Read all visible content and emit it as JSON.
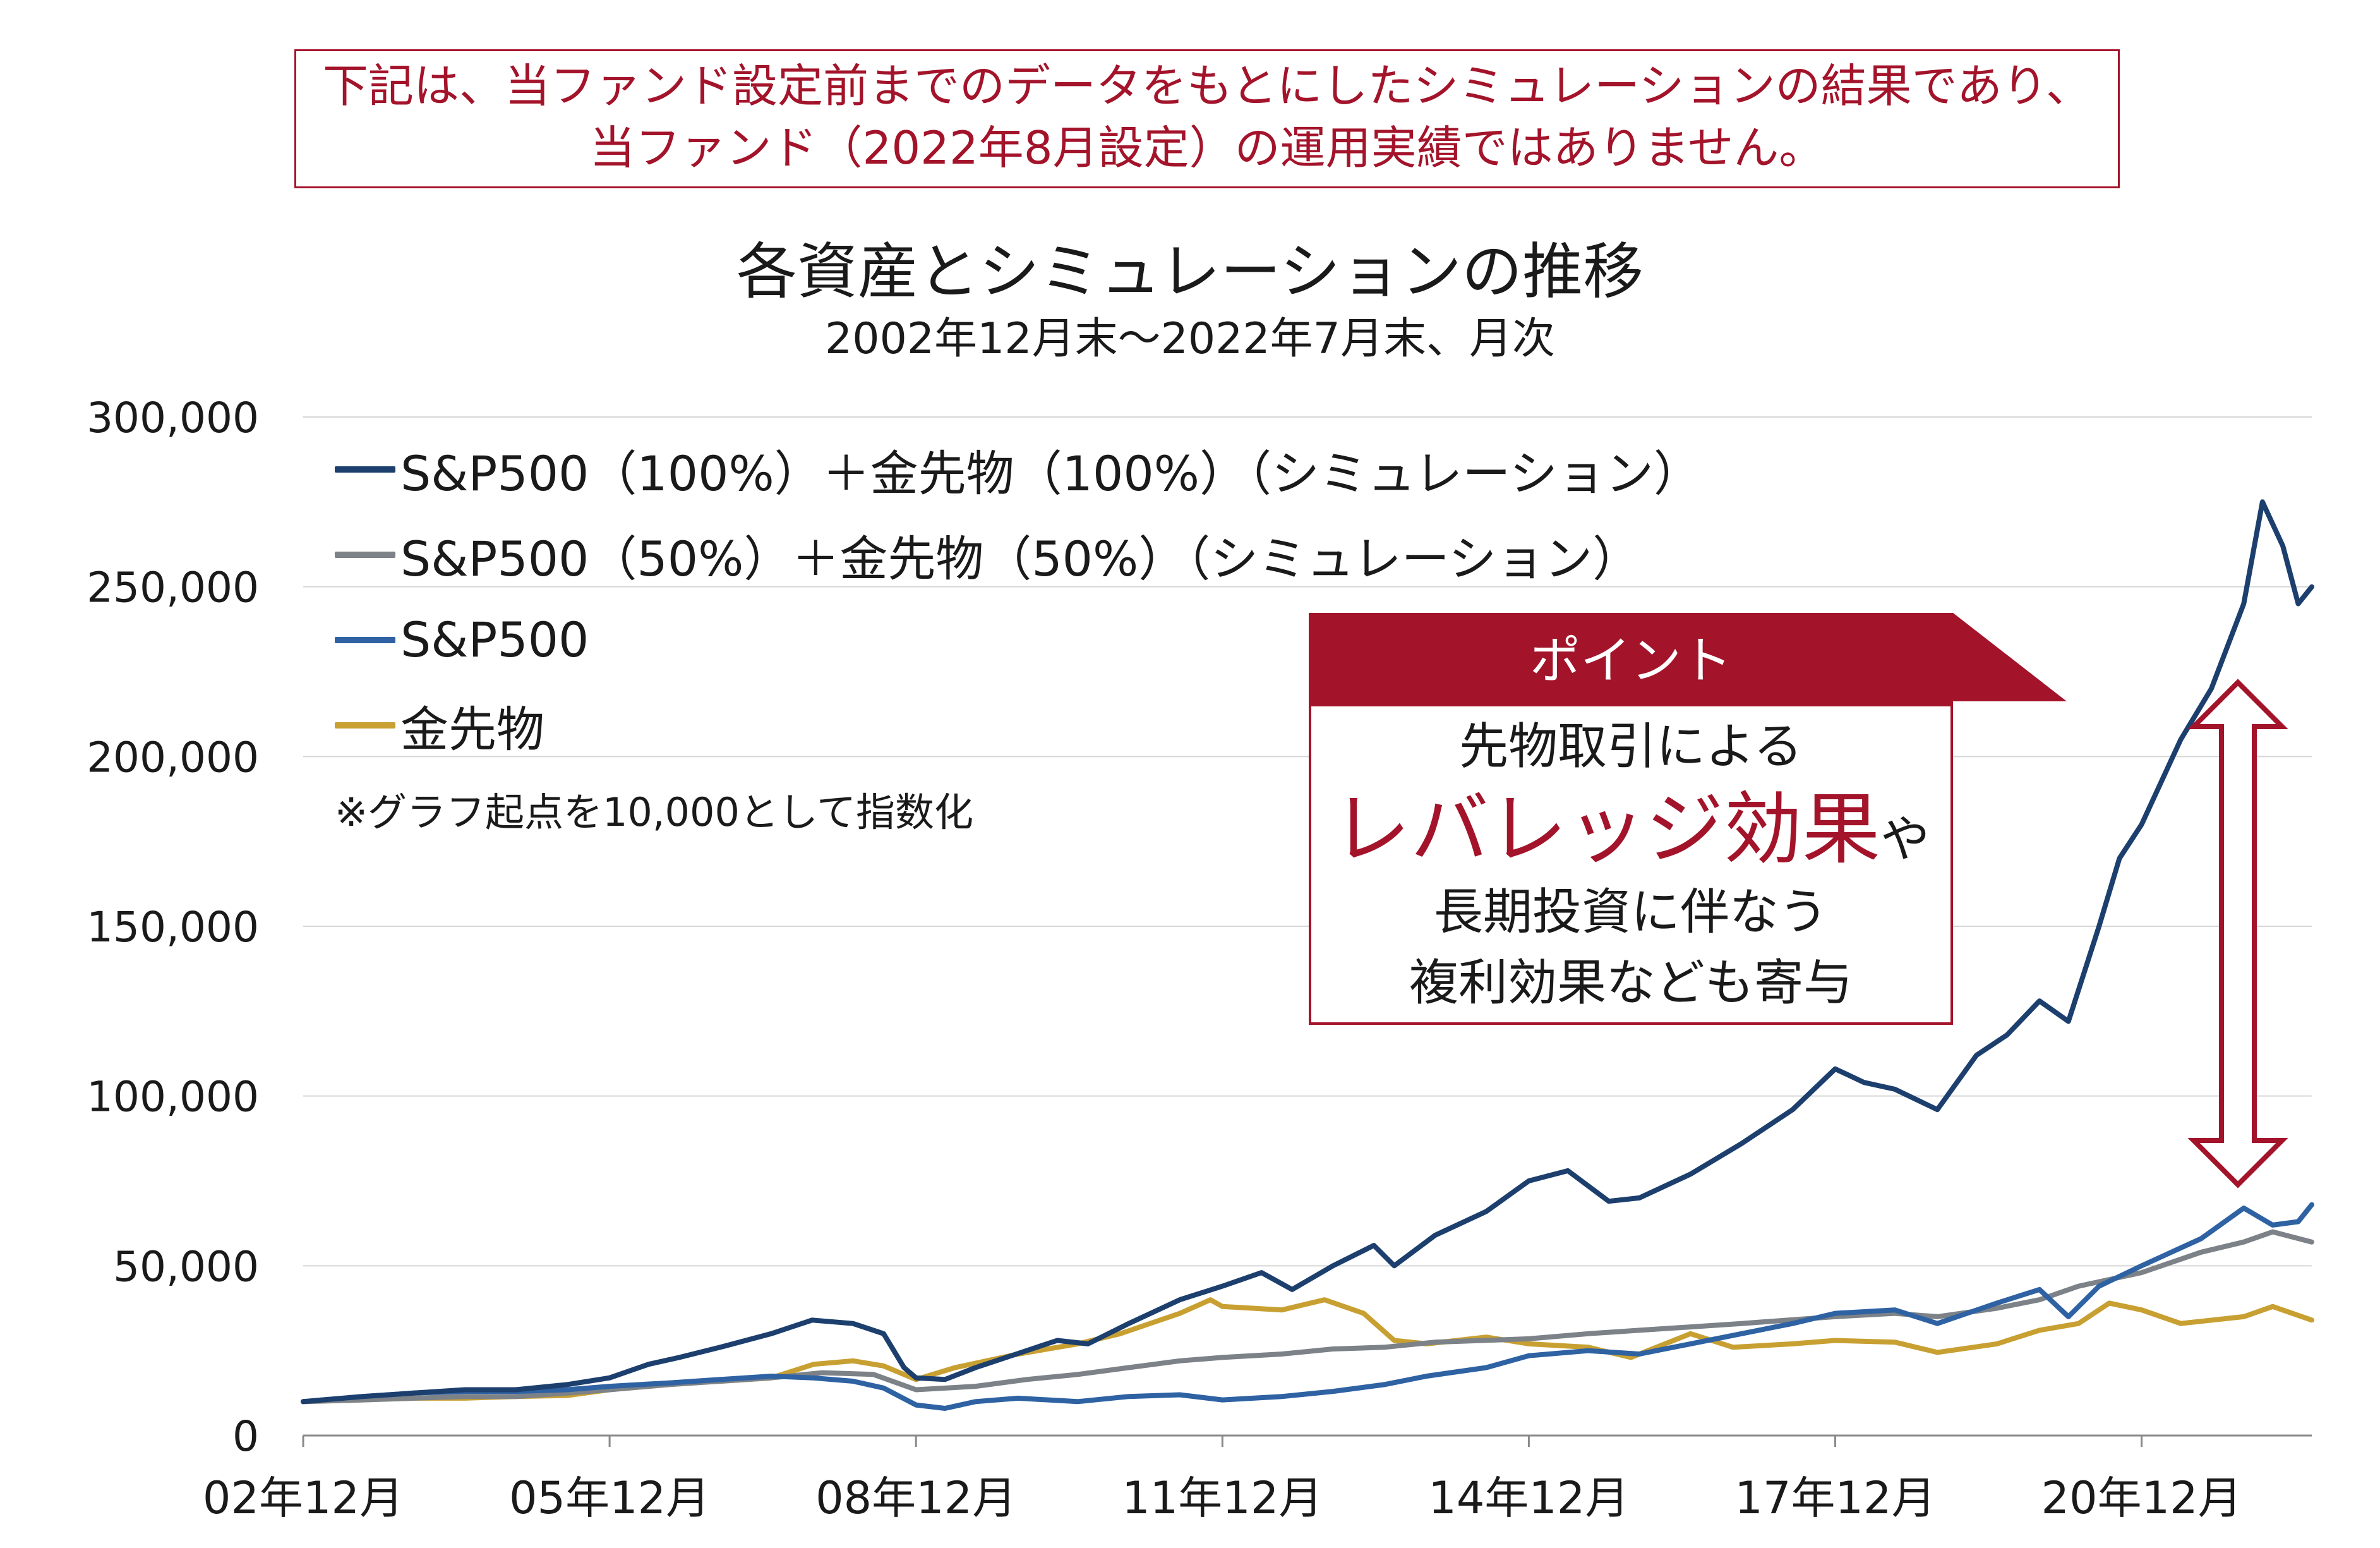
{
  "notice": {
    "line1": "下記は、当ファンド設定前までのデータをもとにしたシミュレーションの結果であり、",
    "line2": "当ファンド（2022年8月設定）の運用実績ではありません。"
  },
  "point": {
    "header": "ポイント",
    "line1": "先物取引による",
    "emphasis": "レバレッジ効果",
    "emphasis_suffix": "や",
    "line3": "長期投資に伴なう",
    "line4": "複利効果なども寄与"
  },
  "chart_data": {
    "type": "line",
    "title": "各資産とシミュレーションの推移",
    "subtitle": "2002年12月末～2022年7月末、月次",
    "note": "※グラフ起点を10,000として指数化",
    "ylim": [
      0,
      300000
    ],
    "y_ticks": [
      "0",
      "50,000",
      "100,000",
      "150,000",
      "200,000",
      "250,000",
      "300,000"
    ],
    "y_tick_values": [
      0,
      50000,
      100000,
      150000,
      200000,
      250000,
      300000
    ],
    "xlim": [
      2002.917,
      2022.583
    ],
    "x_ticks": [
      "02年12月",
      "05年12月",
      "08年12月",
      "11年12月",
      "14年12月",
      "17年12月",
      "20年12月"
    ],
    "x_tick_values": [
      2002.917,
      2005.917,
      2008.917,
      2011.917,
      2014.917,
      2017.917,
      2020.917
    ],
    "legend_placement": "top-left",
    "grid": "horizontal",
    "series": [
      {
        "name": "S&P500（100%）＋金先物（100%）（シミュレーション）",
        "color": "#1c3f6e",
        "points": [
          [
            2002.917,
            10000
          ],
          [
            2003.5,
            11500
          ],
          [
            2004.0,
            12500
          ],
          [
            2004.5,
            13500
          ],
          [
            2005.0,
            13500
          ],
          [
            2005.5,
            15000
          ],
          [
            2005.917,
            17000
          ],
          [
            2006.3,
            21000
          ],
          [
            2006.6,
            23000
          ],
          [
            2007.0,
            26000
          ],
          [
            2007.5,
            30000
          ],
          [
            2007.9,
            34000
          ],
          [
            2008.3,
            33000
          ],
          [
            2008.6,
            30000
          ],
          [
            2008.8,
            20000
          ],
          [
            2008.917,
            17000
          ],
          [
            2009.2,
            16500
          ],
          [
            2009.5,
            20000
          ],
          [
            2009.9,
            24000
          ],
          [
            2010.3,
            28000
          ],
          [
            2010.6,
            27000
          ],
          [
            2011.0,
            33000
          ],
          [
            2011.5,
            40000
          ],
          [
            2011.917,
            44000
          ],
          [
            2012.3,
            48000
          ],
          [
            2012.6,
            43000
          ],
          [
            2013.0,
            50000
          ],
          [
            2013.4,
            56000
          ],
          [
            2013.6,
            50000
          ],
          [
            2014.0,
            59000
          ],
          [
            2014.5,
            66000
          ],
          [
            2014.917,
            75000
          ],
          [
            2015.3,
            78000
          ],
          [
            2015.7,
            69000
          ],
          [
            2016.0,
            70000
          ],
          [
            2016.5,
            77000
          ],
          [
            2017.0,
            86000
          ],
          [
            2017.5,
            96000
          ],
          [
            2017.917,
            108000
          ],
          [
            2018.2,
            104000
          ],
          [
            2018.5,
            102000
          ],
          [
            2018.917,
            96000
          ],
          [
            2019.3,
            112000
          ],
          [
            2019.6,
            118000
          ],
          [
            2019.917,
            128000
          ],
          [
            2020.2,
            122000
          ],
          [
            2020.5,
            150000
          ],
          [
            2020.7,
            170000
          ],
          [
            2020.917,
            180000
          ],
          [
            2021.3,
            205000
          ],
          [
            2021.6,
            220000
          ],
          [
            2021.917,
            245000
          ],
          [
            2022.1,
            275000
          ],
          [
            2022.3,
            262000
          ],
          [
            2022.45,
            245000
          ],
          [
            2022.583,
            250000
          ]
        ]
      },
      {
        "name": "S&P500（50%）＋金先物（50%）（シミュレーション）",
        "color": "#7c8287",
        "points": [
          [
            2002.917,
            10000
          ],
          [
            2003.5,
            10500
          ],
          [
            2004.0,
            11000
          ],
          [
            2004.5,
            11500
          ],
          [
            2005.0,
            11500
          ],
          [
            2005.5,
            12500
          ],
          [
            2005.917,
            13500
          ],
          [
            2006.5,
            15000
          ],
          [
            2007.0,
            16000
          ],
          [
            2007.5,
            17000
          ],
          [
            2008.0,
            18500
          ],
          [
            2008.5,
            18000
          ],
          [
            2008.917,
            13500
          ],
          [
            2009.5,
            14500
          ],
          [
            2010.0,
            16500
          ],
          [
            2010.5,
            18000
          ],
          [
            2011.0,
            20000
          ],
          [
            2011.5,
            22000
          ],
          [
            2011.917,
            23000
          ],
          [
            2012.5,
            24000
          ],
          [
            2013.0,
            25500
          ],
          [
            2013.5,
            26000
          ],
          [
            2014.0,
            27500
          ],
          [
            2014.917,
            28500
          ],
          [
            2015.5,
            30000
          ],
          [
            2016.0,
            31000
          ],
          [
            2016.5,
            32000
          ],
          [
            2017.0,
            33000
          ],
          [
            2017.917,
            35000
          ],
          [
            2018.5,
            36000
          ],
          [
            2018.917,
            35000
          ],
          [
            2019.5,
            37500
          ],
          [
            2019.917,
            40000
          ],
          [
            2020.3,
            44000
          ],
          [
            2020.917,
            48000
          ],
          [
            2021.5,
            54000
          ],
          [
            2021.917,
            57000
          ],
          [
            2022.2,
            60000
          ],
          [
            2022.583,
            57000
          ]
        ]
      },
      {
        "name": "S&P500",
        "color": "#2e62a3",
        "points": [
          [
            2002.917,
            10000
          ],
          [
            2003.5,
            11500
          ],
          [
            2004.0,
            12500
          ],
          [
            2004.5,
            13000
          ],
          [
            2005.0,
            13000
          ],
          [
            2005.5,
            13500
          ],
          [
            2005.917,
            14500
          ],
          [
            2006.5,
            15500
          ],
          [
            2007.0,
            16500
          ],
          [
            2007.5,
            17500
          ],
          [
            2007.9,
            17000
          ],
          [
            2008.3,
            16000
          ],
          [
            2008.6,
            14000
          ],
          [
            2008.917,
            9000
          ],
          [
            2009.2,
            8000
          ],
          [
            2009.5,
            10000
          ],
          [
            2009.917,
            11000
          ],
          [
            2010.5,
            10000
          ],
          [
            2011.0,
            11500
          ],
          [
            2011.5,
            12000
          ],
          [
            2011.917,
            10500
          ],
          [
            2012.5,
            11500
          ],
          [
            2013.0,
            13000
          ],
          [
            2013.5,
            15000
          ],
          [
            2013.917,
            17500
          ],
          [
            2014.5,
            20000
          ],
          [
            2014.917,
            23500
          ],
          [
            2015.5,
            25000
          ],
          [
            2016.0,
            24000
          ],
          [
            2016.5,
            27000
          ],
          [
            2017.0,
            30000
          ],
          [
            2017.5,
            33000
          ],
          [
            2017.917,
            36000
          ],
          [
            2018.5,
            37000
          ],
          [
            2018.917,
            33000
          ],
          [
            2019.5,
            39000
          ],
          [
            2019.917,
            43000
          ],
          [
            2020.2,
            35000
          ],
          [
            2020.5,
            44000
          ],
          [
            2020.917,
            50000
          ],
          [
            2021.5,
            58000
          ],
          [
            2021.917,
            67000
          ],
          [
            2022.2,
            62000
          ],
          [
            2022.45,
            63000
          ],
          [
            2022.583,
            68000
          ]
        ]
      },
      {
        "name": "金先物",
        "color": "#c8a032",
        "points": [
          [
            2002.917,
            10000
          ],
          [
            2003.5,
            10500
          ],
          [
            2004.0,
            11000
          ],
          [
            2004.5,
            11000
          ],
          [
            2005.0,
            11500
          ],
          [
            2005.5,
            11800
          ],
          [
            2005.917,
            13500
          ],
          [
            2006.5,
            15500
          ],
          [
            2007.0,
            16000
          ],
          [
            2007.5,
            17000
          ],
          [
            2007.917,
            21000
          ],
          [
            2008.3,
            22000
          ],
          [
            2008.6,
            20500
          ],
          [
            2008.917,
            16500
          ],
          [
            2009.3,
            20000
          ],
          [
            2009.917,
            24000
          ],
          [
            2010.5,
            27000
          ],
          [
            2010.917,
            30000
          ],
          [
            2011.5,
            36000
          ],
          [
            2011.8,
            40000
          ],
          [
            2011.917,
            38000
          ],
          [
            2012.5,
            37000
          ],
          [
            2012.917,
            40000
          ],
          [
            2013.3,
            36000
          ],
          [
            2013.6,
            28000
          ],
          [
            2013.917,
            27000
          ],
          [
            2014.5,
            29000
          ],
          [
            2014.917,
            27000
          ],
          [
            2015.5,
            26000
          ],
          [
            2015.917,
            23000
          ],
          [
            2016.5,
            30000
          ],
          [
            2016.917,
            26000
          ],
          [
            2017.5,
            27000
          ],
          [
            2017.917,
            28000
          ],
          [
            2018.5,
            27500
          ],
          [
            2018.917,
            24500
          ],
          [
            2019.5,
            27000
          ],
          [
            2019.917,
            31000
          ],
          [
            2020.3,
            33000
          ],
          [
            2020.6,
            39000
          ],
          [
            2020.917,
            37000
          ],
          [
            2021.3,
            33000
          ],
          [
            2021.917,
            35000
          ],
          [
            2022.2,
            38000
          ],
          [
            2022.583,
            34000
          ]
        ]
      }
    ]
  }
}
